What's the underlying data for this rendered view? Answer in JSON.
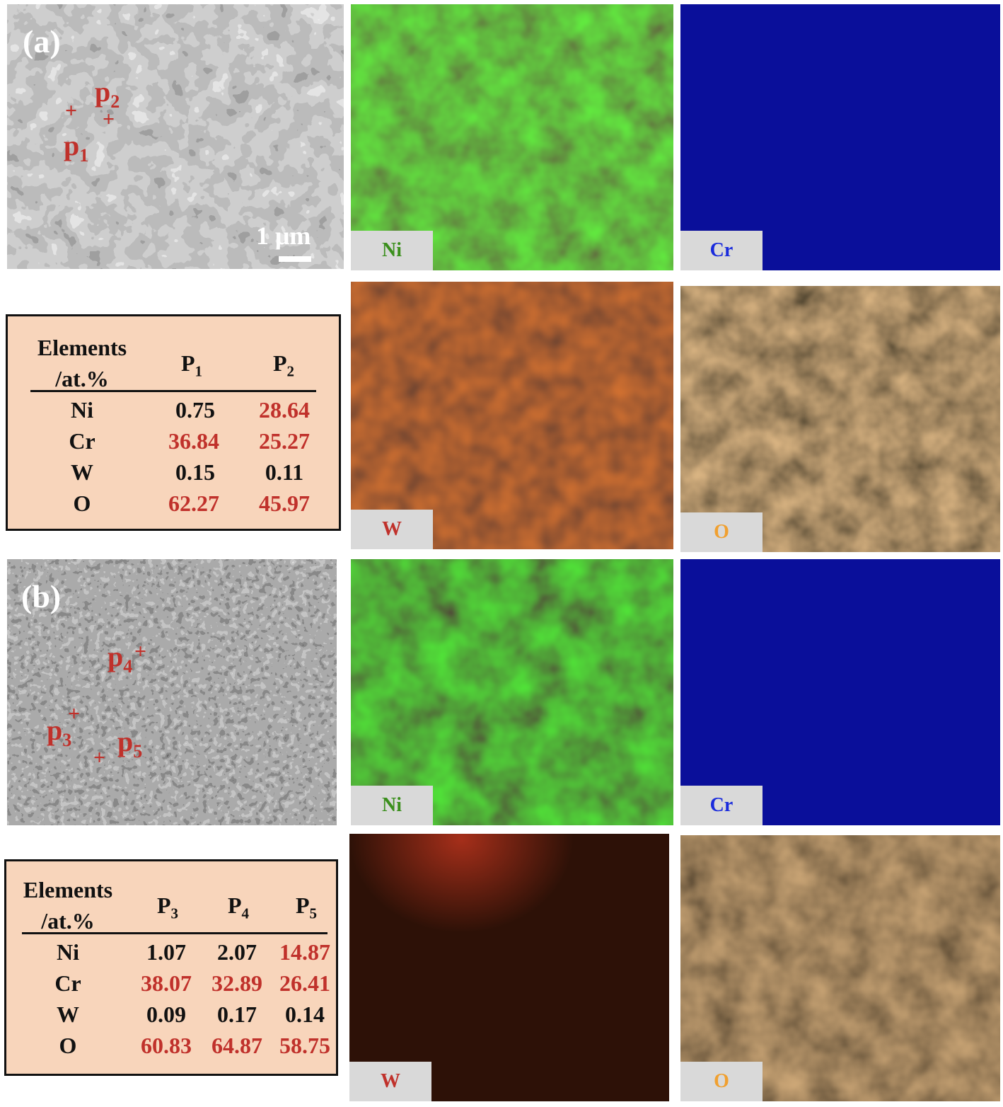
{
  "panel_a": {
    "label": "(a)",
    "points": [
      "p",
      "p"
    ],
    "point_subs": [
      "1",
      "2"
    ],
    "scale_bar": "1 μm"
  },
  "panel_b": {
    "label": "(b)",
    "points": [
      "p",
      "p",
      "p"
    ],
    "point_subs": [
      "3",
      "4",
      "5"
    ]
  },
  "maps_a": {
    "ni": "Ni",
    "cr": "Cr",
    "w": "W",
    "o": "O"
  },
  "maps_b": {
    "ni": "Ni",
    "cr": "Cr",
    "w": "W",
    "o": "O"
  },
  "map_colors": {
    "ni_label": "#3b8f1d",
    "cr_label": "#1a2bdc",
    "w_label": "#c0312b",
    "o_label": "#f0a030"
  },
  "table_a": {
    "header_line1": "Elements",
    "header_line2": "/at.%",
    "columns": [
      {
        "main": "P",
        "sub": "1"
      },
      {
        "main": "P",
        "sub": "2"
      }
    ],
    "rows": [
      {
        "element": "Ni",
        "values": [
          "0.75",
          "28.64"
        ]
      },
      {
        "element": "Cr",
        "values": [
          "36.84",
          "25.27"
        ]
      },
      {
        "element": "W",
        "values": [
          "0.15",
          "0.11"
        ]
      },
      {
        "element": "O",
        "values": [
          "62.27",
          "45.97"
        ]
      }
    ]
  },
  "table_b": {
    "header_line1": "Elements",
    "header_line2": "/at.%",
    "columns": [
      {
        "main": "P",
        "sub": "3"
      },
      {
        "main": "P",
        "sub": "4"
      },
      {
        "main": "P",
        "sub": "5"
      }
    ],
    "rows": [
      {
        "element": "Ni",
        "values": [
          "1.07",
          "2.07",
          "14.87"
        ]
      },
      {
        "element": "Cr",
        "values": [
          "38.07",
          "32.89",
          "26.41"
        ]
      },
      {
        "element": "W",
        "values": [
          "0.09",
          "0.17",
          "0.14"
        ]
      },
      {
        "element": "O",
        "values": [
          "60.83",
          "64.87",
          "58.75"
        ]
      }
    ]
  },
  "accent_red": "#c0312b"
}
